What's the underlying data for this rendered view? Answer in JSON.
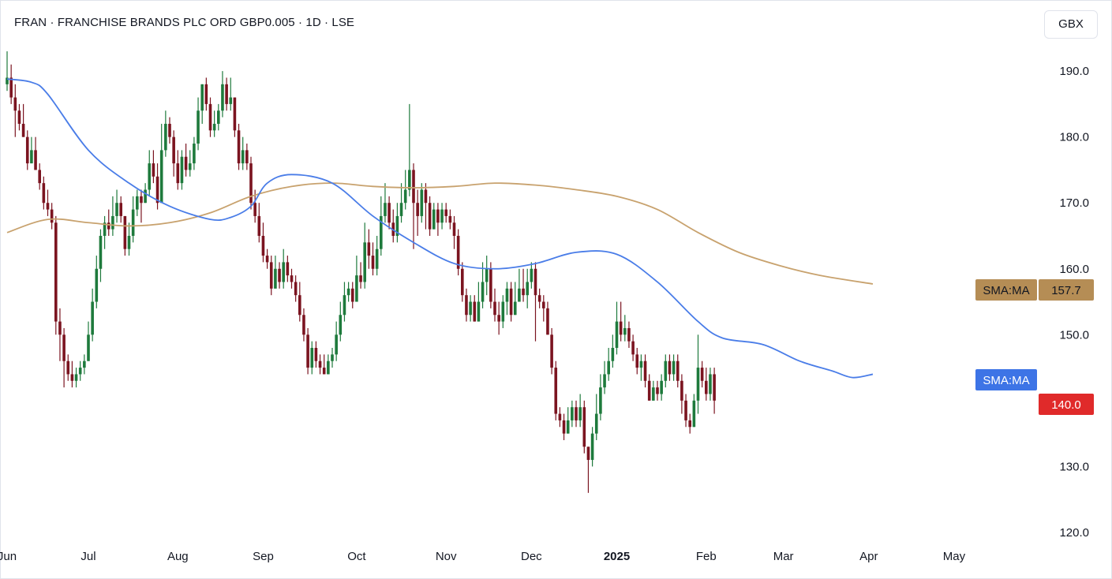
{
  "header": {
    "title": "FRAN · FRANCHISE BRANDS PLC ORD GBP0.005 · 1D · LSE",
    "currency_button": "GBX"
  },
  "colors": {
    "up": "#1e7a3c",
    "down": "#7b1420",
    "sma_fast": "#4a7de8",
    "sma_slow": "#c8a26e",
    "price_tag": "#e02a2a",
    "sma_slow_tag": "#b58d55",
    "sma_fast_tag": "#3d74e6"
  },
  "chart_data": {
    "type": "candlestick",
    "title": "FRAN · FRANCHISE BRANDS PLC ORD GBP0.005 · 1D · LSE",
    "ylim": [
      117,
      196
    ],
    "yticks": [
      "190.0",
      "180.0",
      "170.0",
      "160.0",
      "150.0",
      "140.0",
      "130.0",
      "120.0"
    ],
    "xtick_labels": [
      "Jun",
      "Jul",
      "Aug",
      "Sep",
      "Oct",
      "Nov",
      "Dec",
      "2025",
      "Feb",
      "Mar",
      "Apr",
      "May"
    ],
    "xticks_at_day": [
      0,
      20,
      42,
      63,
      86,
      108,
      129,
      150,
      172,
      191,
      212,
      233
    ],
    "last_price": "140.0",
    "sma_slow_label": "SMA:MA",
    "sma_slow_value": "157.7",
    "sma_fast_label": "SMA:MA",
    "sma_slow_anchors": [
      [
        0,
        165.5
      ],
      [
        10,
        167.5
      ],
      [
        20,
        167
      ],
      [
        30,
        166.5
      ],
      [
        40,
        167
      ],
      [
        50,
        168.5
      ],
      [
        60,
        171
      ],
      [
        70,
        172.5
      ],
      [
        80,
        173
      ],
      [
        90,
        172.5
      ],
      [
        100,
        172.3
      ],
      [
        110,
        172.5
      ],
      [
        120,
        173
      ],
      [
        130,
        172.7
      ],
      [
        140,
        172
      ],
      [
        150,
        171
      ],
      [
        160,
        169
      ],
      [
        170,
        165.5
      ],
      [
        180,
        162.5
      ],
      [
        190,
        160.5
      ],
      [
        200,
        159
      ],
      [
        213,
        157.7
      ]
    ],
    "sma_fast_anchors": [
      [
        0,
        188.8
      ],
      [
        6,
        188.3
      ],
      [
        10,
        186.5
      ],
      [
        20,
        178
      ],
      [
        30,
        173
      ],
      [
        40,
        169.5
      ],
      [
        50,
        167.5
      ],
      [
        55,
        167.8
      ],
      [
        60,
        169.5
      ],
      [
        64,
        173
      ],
      [
        70,
        174.3
      ],
      [
        80,
        173
      ],
      [
        90,
        168
      ],
      [
        100,
        164
      ],
      [
        110,
        160.8
      ],
      [
        120,
        160
      ],
      [
        130,
        160.8
      ],
      [
        140,
        162.5
      ],
      [
        150,
        162.2
      ],
      [
        160,
        158
      ],
      [
        170,
        152
      ],
      [
        176,
        149.5
      ],
      [
        186,
        148.5
      ],
      [
        195,
        146
      ],
      [
        203,
        144.5
      ],
      [
        208,
        143.5
      ],
      [
        213,
        144.0
      ]
    ],
    "candles": [
      [
        188,
        189,
        193,
        187
      ],
      [
        189,
        186,
        191,
        185
      ],
      [
        186,
        184,
        188,
        180
      ],
      [
        184,
        182,
        185,
        181
      ],
      [
        182,
        180,
        185,
        180
      ],
      [
        180,
        176,
        181,
        175
      ],
      [
        176,
        178,
        180,
        176
      ],
      [
        178,
        175,
        180,
        175
      ],
      [
        175,
        173,
        176,
        172
      ],
      [
        173,
        170,
        174,
        169
      ],
      [
        170,
        169,
        172,
        168
      ],
      [
        169,
        167,
        170,
        166
      ],
      [
        167,
        152,
        168,
        150
      ],
      [
        152,
        150,
        154,
        146
      ],
      [
        150,
        146,
        151,
        142
      ],
      [
        146,
        144,
        147,
        143
      ],
      [
        144,
        143,
        146,
        142
      ],
      [
        143,
        144,
        145,
        142
      ],
      [
        144,
        145,
        146,
        143
      ],
      [
        145,
        146,
        147,
        144
      ],
      [
        146,
        150,
        152,
        146
      ],
      [
        150,
        155,
        157,
        149
      ],
      [
        155,
        160,
        162,
        154
      ],
      [
        160,
        165,
        166,
        158
      ],
      [
        165,
        167,
        168,
        163
      ],
      [
        167,
        166,
        169,
        165
      ],
      [
        166,
        168,
        171,
        165
      ],
      [
        168,
        170,
        172,
        167
      ],
      [
        170,
        168,
        171,
        167
      ],
      [
        168,
        163,
        168,
        162
      ],
      [
        163,
        165,
        167,
        162
      ],
      [
        165,
        169,
        171,
        164
      ],
      [
        169,
        171,
        172,
        168
      ],
      [
        171,
        170,
        172,
        167
      ],
      [
        170,
        172,
        173,
        170
      ],
      [
        172,
        176,
        178,
        171
      ],
      [
        176,
        174,
        178,
        173
      ],
      [
        174,
        170,
        176,
        169
      ],
      [
        170,
        178,
        182,
        170
      ],
      [
        178,
        182,
        184,
        177
      ],
      [
        182,
        180,
        183,
        179
      ],
      [
        180,
        176,
        181,
        174
      ],
      [
        176,
        173,
        178,
        172
      ],
      [
        173,
        177,
        178,
        172
      ],
      [
        177,
        175,
        179,
        174
      ],
      [
        175,
        176,
        178,
        174
      ],
      [
        176,
        179,
        180,
        175
      ],
      [
        179,
        184,
        186,
        178
      ],
      [
        184,
        188,
        188,
        182
      ],
      [
        188,
        185,
        189,
        184
      ],
      [
        185,
        181,
        186,
        180
      ],
      [
        181,
        182,
        184,
        180
      ],
      [
        182,
        184,
        185,
        181
      ],
      [
        184,
        188,
        190,
        183
      ],
      [
        188,
        185,
        189,
        184
      ],
      [
        185,
        186,
        189,
        184
      ],
      [
        186,
        181,
        186,
        180
      ],
      [
        181,
        176,
        182,
        175
      ],
      [
        176,
        178,
        180,
        175
      ],
      [
        178,
        176,
        179,
        175
      ],
      [
        176,
        170,
        177,
        169
      ],
      [
        170,
        168,
        172,
        167
      ],
      [
        168,
        165,
        170,
        164
      ],
      [
        165,
        162,
        167,
        161
      ],
      [
        162,
        161,
        163,
        160
      ],
      [
        161,
        157,
        162,
        156
      ],
      [
        157,
        160,
        162,
        157
      ],
      [
        160,
        158,
        161,
        157
      ],
      [
        158,
        161,
        163,
        157
      ],
      [
        161,
        159,
        162,
        158
      ],
      [
        159,
        158,
        160,
        157
      ],
      [
        158,
        156,
        159,
        155
      ],
      [
        156,
        153,
        158,
        152
      ],
      [
        153,
        150,
        154,
        149
      ],
      [
        150,
        145,
        151,
        144
      ],
      [
        145,
        148,
        149,
        144
      ],
      [
        148,
        146,
        149,
        145
      ],
      [
        146,
        145,
        147,
        144
      ],
      [
        145,
        144,
        147,
        144
      ],
      [
        144,
        146,
        147,
        144
      ],
      [
        146,
        147,
        148,
        145
      ],
      [
        147,
        150,
        152,
        146
      ],
      [
        150,
        153,
        155,
        149
      ],
      [
        153,
        156,
        158,
        152
      ],
      [
        156,
        157,
        158,
        155
      ],
      [
        157,
        155,
        158,
        154
      ],
      [
        155,
        159,
        162,
        155
      ],
      [
        159,
        158,
        161,
        157
      ],
      [
        158,
        164,
        167,
        157
      ],
      [
        164,
        162,
        166,
        160
      ],
      [
        162,
        160,
        164,
        159
      ],
      [
        160,
        163,
        165,
        159
      ],
      [
        163,
        168,
        171,
        162
      ],
      [
        168,
        170,
        173,
        167
      ],
      [
        170,
        167,
        171,
        166
      ],
      [
        167,
        165,
        169,
        164
      ],
      [
        165,
        168,
        170,
        164
      ],
      [
        168,
        170,
        173,
        167
      ],
      [
        170,
        172,
        175,
        169
      ],
      [
        172,
        175,
        185,
        171
      ],
      [
        175,
        170,
        176,
        163
      ],
      [
        170,
        168,
        172,
        165
      ],
      [
        168,
        172,
        173,
        167
      ],
      [
        172,
        170,
        173,
        166
      ],
      [
        170,
        166,
        171,
        165
      ],
      [
        166,
        169,
        170,
        166
      ],
      [
        169,
        167,
        170,
        165
      ],
      [
        167,
        169,
        170,
        166
      ],
      [
        169,
        168,
        170,
        167
      ],
      [
        168,
        167,
        169,
        166
      ],
      [
        167,
        165,
        168,
        163
      ],
      [
        165,
        160,
        166,
        159
      ],
      [
        160,
        156,
        161,
        155
      ],
      [
        156,
        153,
        157,
        152
      ],
      [
        153,
        155,
        156,
        152
      ],
      [
        155,
        152,
        156,
        152
      ],
      [
        152,
        155,
        158,
        152
      ],
      [
        155,
        158,
        161,
        154
      ],
      [
        158,
        160,
        162,
        156
      ],
      [
        160,
        155,
        161,
        154
      ],
      [
        155,
        153,
        157,
        152
      ],
      [
        153,
        152,
        155,
        150
      ],
      [
        152,
        155,
        156,
        151
      ],
      [
        155,
        157,
        158,
        153
      ],
      [
        157,
        153,
        158,
        152
      ],
      [
        153,
        155,
        158,
        153
      ],
      [
        155,
        157,
        160,
        155
      ],
      [
        157,
        156,
        160,
        155
      ],
      [
        156,
        158,
        160,
        154
      ],
      [
        158,
        160,
        161,
        157
      ],
      [
        160,
        156,
        161,
        149
      ],
      [
        156,
        155,
        157,
        154
      ],
      [
        155,
        154,
        156,
        152
      ],
      [
        154,
        150,
        155,
        150
      ],
      [
        150,
        145,
        151,
        144
      ],
      [
        145,
        138,
        146,
        137
      ],
      [
        138,
        137,
        139,
        136
      ],
      [
        137,
        135,
        138,
        134
      ],
      [
        135,
        137,
        139,
        135
      ],
      [
        137,
        139,
        140,
        136
      ],
      [
        139,
        137,
        140,
        136
      ],
      [
        137,
        139,
        141,
        136
      ],
      [
        139,
        133,
        140,
        132
      ],
      [
        133,
        131,
        133,
        126
      ],
      [
        131,
        135,
        136,
        130
      ],
      [
        135,
        138,
        141,
        134
      ],
      [
        138,
        142,
        144,
        137
      ],
      [
        142,
        144,
        146,
        141
      ],
      [
        144,
        146,
        148,
        143
      ],
      [
        146,
        148,
        150,
        145
      ],
      [
        148,
        152,
        155,
        147
      ],
      [
        152,
        150,
        155,
        149
      ],
      [
        150,
        151,
        153,
        149
      ],
      [
        151,
        149,
        152,
        148
      ],
      [
        149,
        147,
        150,
        146
      ],
      [
        147,
        145,
        148,
        144
      ],
      [
        145,
        146,
        147,
        143
      ],
      [
        146,
        143,
        147,
        142
      ],
      [
        143,
        140,
        144,
        140
      ],
      [
        140,
        142,
        143,
        140
      ],
      [
        142,
        141,
        143,
        140
      ],
      [
        141,
        143,
        144,
        140
      ],
      [
        143,
        146,
        147,
        142
      ],
      [
        146,
        144,
        147,
        143
      ],
      [
        144,
        146,
        147,
        143
      ],
      [
        146,
        143,
        147,
        142
      ],
      [
        143,
        140,
        144,
        138
      ],
      [
        140,
        137,
        141,
        136
      ],
      [
        137,
        136,
        138,
        135
      ],
      [
        136,
        140,
        141,
        136
      ],
      [
        140,
        145,
        150,
        138
      ],
      [
        145,
        143,
        146,
        142
      ],
      [
        143,
        141,
        145,
        140
      ],
      [
        141,
        144,
        145,
        140
      ],
      [
        144,
        140,
        145,
        138
      ]
    ]
  }
}
